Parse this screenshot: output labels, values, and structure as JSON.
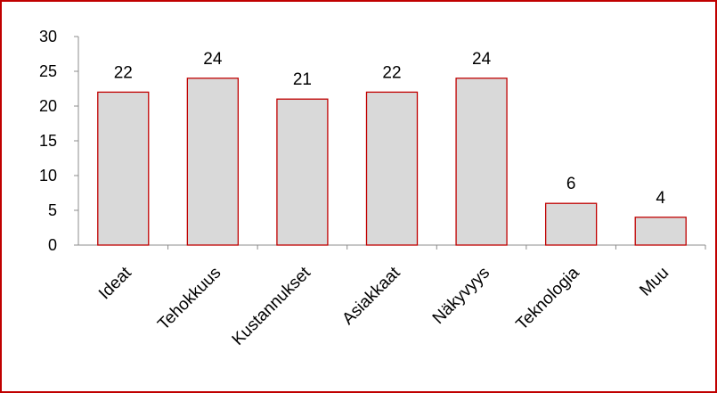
{
  "chart_data": {
    "type": "bar",
    "title": "",
    "xlabel": "",
    "ylabel": "",
    "categories": [
      "Ideat",
      "Tehokkuus",
      "Kustannukset",
      "Asiakkaat",
      "Näkyvyys",
      "Teknologia",
      "Muu"
    ],
    "values": [
      22,
      24,
      21,
      22,
      24,
      6,
      4
    ],
    "ylim": [
      0,
      30
    ],
    "yticks": [
      0,
      5,
      10,
      15,
      20,
      25,
      30
    ],
    "grid": false,
    "legend": "none",
    "bar_fill": "#d9d9d9",
    "bar_border": "#c00000",
    "frame_border": "#c00000",
    "axis_color": "#8c8c8c"
  }
}
